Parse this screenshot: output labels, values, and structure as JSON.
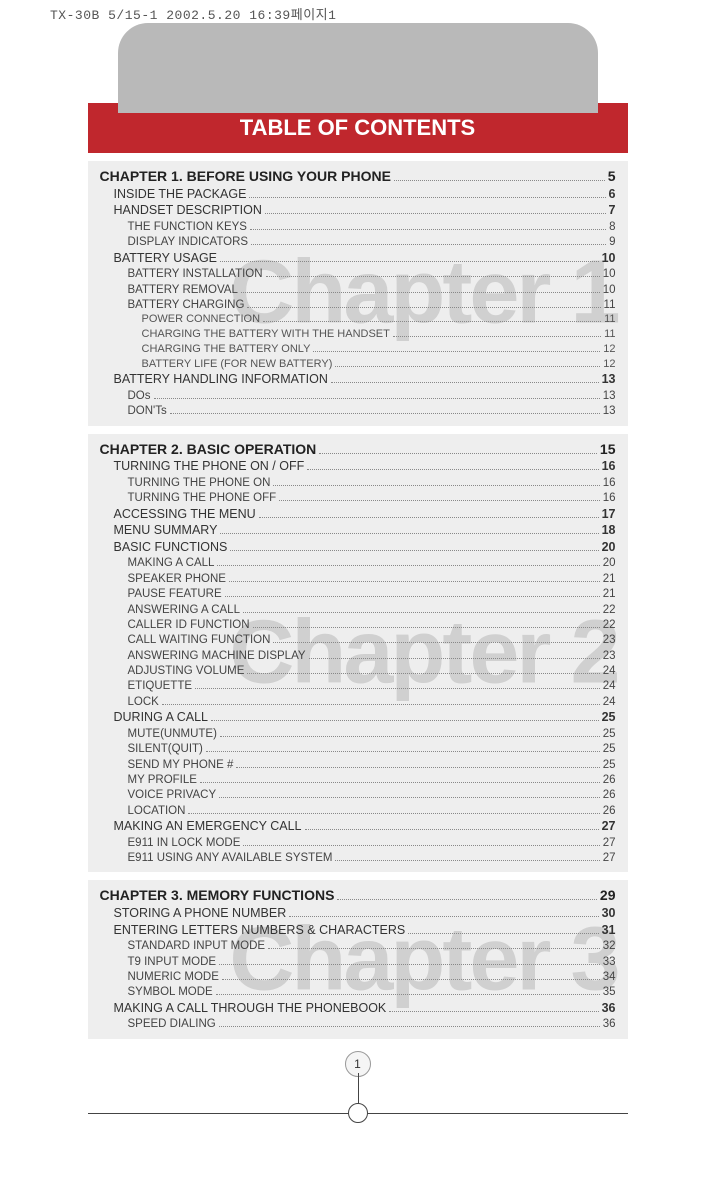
{
  "stamp": "TX-30B 5/15-1  2002.5.20 16:39페이지1",
  "title": "TABLE OF CONTENTS",
  "page_number": "1",
  "chapters": [
    {
      "watermark": "Chapter 1",
      "entries": [
        {
          "level": 0,
          "label": "CHAPTER 1. BEFORE USING YOUR PHONE",
          "page": "5"
        },
        {
          "level": 1,
          "label": "INSIDE THE PACKAGE",
          "page": "6"
        },
        {
          "level": 1,
          "label": "HANDSET DESCRIPTION",
          "page": "7"
        },
        {
          "level": 2,
          "label": "THE FUNCTION KEYS",
          "page": "8"
        },
        {
          "level": 2,
          "label": "DISPLAY INDICATORS",
          "page": "9"
        },
        {
          "level": 1,
          "label": "BATTERY USAGE",
          "page": "10"
        },
        {
          "level": 2,
          "label": "BATTERY INSTALLATION",
          "page": "10"
        },
        {
          "level": 2,
          "label": "BATTERY REMOVAL",
          "page": "10"
        },
        {
          "level": 2,
          "label": "BATTERY CHARGING",
          "page": "11"
        },
        {
          "level": 3,
          "label": "POWER CONNECTION",
          "page": "11"
        },
        {
          "level": 3,
          "label": "CHARGING THE BATTERY WITH THE HANDSET",
          "page": "11"
        },
        {
          "level": 3,
          "label": "CHARGING THE BATTERY ONLY",
          "page": "12"
        },
        {
          "level": 3,
          "label": "BATTERY LIFE (FOR NEW BATTERY)",
          "page": "12"
        },
        {
          "level": 1,
          "label": "BATTERY HANDLING INFORMATION",
          "page": "13"
        },
        {
          "level": 2,
          "label": "DOs",
          "page": "13"
        },
        {
          "level": 2,
          "label": "DON'Ts",
          "page": "13"
        }
      ]
    },
    {
      "watermark": "Chapter 2",
      "entries": [
        {
          "level": 0,
          "label": "CHAPTER 2. BASIC OPERATION",
          "page": "15"
        },
        {
          "level": 1,
          "label": "TURNING THE PHONE ON / OFF",
          "page": "16"
        },
        {
          "level": 2,
          "label": "TURNING THE PHONE ON",
          "page": "16"
        },
        {
          "level": 2,
          "label": "TURNING THE PHONE OFF",
          "page": "16"
        },
        {
          "level": 1,
          "label": "ACCESSING THE MENU",
          "page": "17"
        },
        {
          "level": 1,
          "label": "MENU SUMMARY",
          "page": "18"
        },
        {
          "level": 1,
          "label": "BASIC FUNCTIONS",
          "page": "20"
        },
        {
          "level": 2,
          "label": "MAKING A CALL",
          "page": "20"
        },
        {
          "level": 2,
          "label": "SPEAKER PHONE",
          "page": "21"
        },
        {
          "level": 2,
          "label": "PAUSE FEATURE",
          "page": "21"
        },
        {
          "level": 2,
          "label": "ANSWERING A CALL",
          "page": "22"
        },
        {
          "level": 2,
          "label": "CALLER ID FUNCTION",
          "page": "22"
        },
        {
          "level": 2,
          "label": "CALL WAITING FUNCTION",
          "page": "23"
        },
        {
          "level": 2,
          "label": "ANSWERING MACHINE DISPLAY",
          "page": "23"
        },
        {
          "level": 2,
          "label": "ADJUSTING VOLUME",
          "page": "24"
        },
        {
          "level": 2,
          "label": "ETIQUETTE",
          "page": "24"
        },
        {
          "level": 2,
          "label": "LOCK",
          "page": "24"
        },
        {
          "level": 1,
          "label": "DURING A CALL",
          "page": "25"
        },
        {
          "level": 2,
          "label": "MUTE(UNMUTE)",
          "page": "25"
        },
        {
          "level": 2,
          "label": "SILENT(QUIT)",
          "page": "25"
        },
        {
          "level": 2,
          "label": "SEND MY PHONE #",
          "page": "25"
        },
        {
          "level": 2,
          "label": "MY PROFILE",
          "page": "26"
        },
        {
          "level": 2,
          "label": "VOICE PRIVACY",
          "page": "26"
        },
        {
          "level": 2,
          "label": "LOCATION",
          "page": "26"
        },
        {
          "level": 1,
          "label": "MAKING AN EMERGENCY CALL",
          "page": "27"
        },
        {
          "level": 2,
          "label": "E911 IN LOCK MODE",
          "page": "27"
        },
        {
          "level": 2,
          "label": "E911 USING ANY AVAILABLE SYSTEM",
          "page": "27"
        }
      ]
    },
    {
      "watermark": "Chapter 3",
      "entries": [
        {
          "level": 0,
          "label": "CHAPTER 3. MEMORY FUNCTIONS",
          "page": "29"
        },
        {
          "level": 1,
          "label": "STORING A PHONE NUMBER",
          "page": "30"
        },
        {
          "level": 1,
          "label": "ENTERING LETTERS NUMBERS & CHARACTERS",
          "page": "31"
        },
        {
          "level": 2,
          "label": "STANDARD INPUT MODE",
          "page": "32"
        },
        {
          "level": 2,
          "label": "T9 INPUT MODE",
          "page": "33"
        },
        {
          "level": 2,
          "label": "NUMERIC MODE",
          "page": "34"
        },
        {
          "level": 2,
          "label": "SYMBOL MODE",
          "page": "35"
        },
        {
          "level": 1,
          "label": "MAKING A CALL THROUGH THE PHONEBOOK",
          "page": "36"
        },
        {
          "level": 2,
          "label": "SPEED DIALING",
          "page": "36"
        }
      ]
    }
  ]
}
